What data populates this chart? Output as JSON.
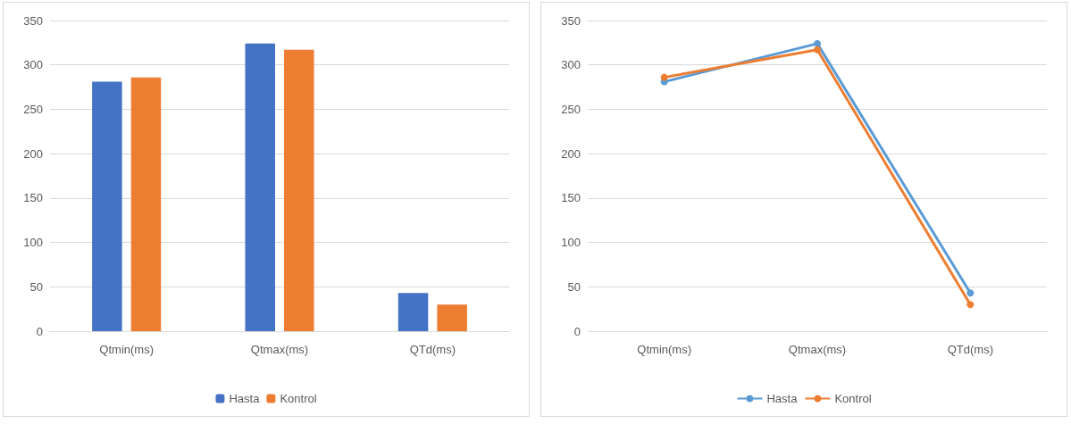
{
  "chart_data": [
    {
      "type": "bar",
      "categories": [
        "Qtmin(ms)",
        "Qtmax(ms)",
        "QTd(ms)"
      ],
      "series": [
        {
          "name": "Hasta",
          "color": "#4472c4",
          "values": [
            281,
            324,
            43
          ]
        },
        {
          "name": "Kontrol",
          "color": "#ed7d31",
          "values": [
            286,
            317,
            30
          ]
        }
      ],
      "ylim": [
        0,
        350
      ],
      "yticks": [
        0,
        50,
        100,
        150,
        200,
        250,
        300,
        350
      ],
      "grid": "y",
      "legend": "bottom"
    },
    {
      "type": "line",
      "categories": [
        "Qtmin(ms)",
        "Qtmax(ms)",
        "QTd(ms)"
      ],
      "series": [
        {
          "name": "Hasta",
          "color": "#5b9bd5",
          "values": [
            281,
            324,
            43
          ]
        },
        {
          "name": "Kontrol",
          "color": "#ed7d31",
          "values": [
            286,
            317,
            30
          ]
        }
      ],
      "ylim": [
        0,
        350
      ],
      "yticks": [
        0,
        50,
        100,
        150,
        200,
        250,
        300,
        350
      ],
      "grid": "y",
      "legend": "bottom",
      "marker": "circle"
    }
  ]
}
